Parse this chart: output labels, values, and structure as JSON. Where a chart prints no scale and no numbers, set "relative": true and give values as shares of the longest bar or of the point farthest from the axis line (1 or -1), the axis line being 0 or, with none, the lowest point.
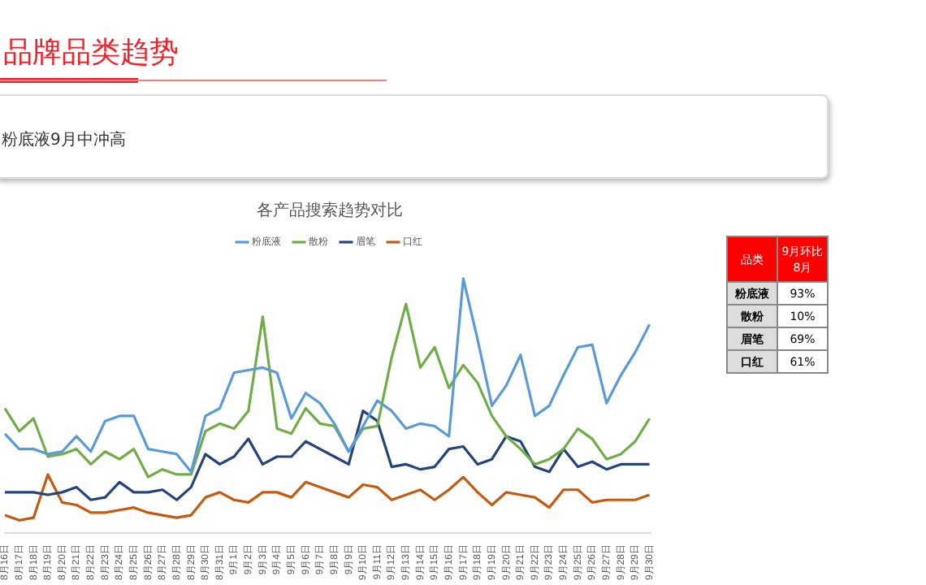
{
  "chart_data": [
    {
      "type": "line",
      "title": "各产品搜索趋势对比",
      "relative": true,
      "legend": "top",
      "grid": false,
      "marker": "none",
      "line_style": "solid",
      "annotations": [
        "品牌品类趋势",
        "粉底液9月中冲高"
      ],
      "categories": [
        "8月16日",
        "8月17日",
        "8月18日",
        "8月19日",
        "8月20日",
        "8月21日",
        "8月22日",
        "8月23日",
        "8月24日",
        "8月25日",
        "8月26日",
        "8月27日",
        "8月28日",
        "8月29日",
        "8月30日",
        "8月31日",
        "9月1日",
        "9月2日",
        "9月3日",
        "9月4日",
        "9月5日",
        "9月6日",
        "9月7日",
        "9月8日",
        "9月9日",
        "9月10日",
        "9月11日",
        "9月12日",
        "9月13日",
        "9月14日",
        "9月15日",
        "9月16日",
        "9月17日",
        "9月18日",
        "9月19日",
        "9月20日",
        "9月21日",
        "9月22日",
        "9月23日",
        "9月24日",
        "9月25日",
        "9月26日",
        "9月27日",
        "9月28日",
        "9月29日",
        "9月30日"
      ],
      "series": [
        {
          "name": "粉底液",
          "color": "#5b9bd5",
          "values": [
            0.39,
            0.33,
            0.33,
            0.31,
            0.32,
            0.38,
            0.32,
            0.44,
            0.46,
            0.46,
            0.33,
            0.32,
            0.31,
            0.24,
            0.46,
            0.49,
            0.63,
            0.64,
            0.65,
            0.63,
            0.45,
            0.55,
            0.51,
            0.43,
            0.32,
            0.42,
            0.52,
            0.48,
            0.41,
            0.43,
            0.42,
            0.38,
            1,
            0.76,
            0.5,
            0.58,
            0.7,
            0.46,
            0.5,
            0.62,
            0.73,
            0.74,
            0.51,
            0.62,
            0.71,
            0.82
          ]
        },
        {
          "name": "散粉",
          "color": "#70ad47",
          "values": [
            0.49,
            0.4,
            0.45,
            0.3,
            0.31,
            0.33,
            0.27,
            0.32,
            0.29,
            0.33,
            0.22,
            0.25,
            0.23,
            0.23,
            0.4,
            0.43,
            0.41,
            0.48,
            0.85,
            0.41,
            0.39,
            0.49,
            0.43,
            0.42,
            0.32,
            0.41,
            0.42,
            0.69,
            0.9,
            0.65,
            0.73,
            0.57,
            0.66,
            0.59,
            0.46,
            0.38,
            0.33,
            0.27,
            0.29,
            0.33,
            0.41,
            0.37,
            0.29,
            0.31,
            0.36,
            0.45
          ]
        },
        {
          "name": "眉笔",
          "color": "#264478",
          "values": [
            0.16,
            0.16,
            0.16,
            0.15,
            0.16,
            0.18,
            0.13,
            0.14,
            0.2,
            0.16,
            0.16,
            0.17,
            0.13,
            0.18,
            0.31,
            0.27,
            0.3,
            0.37,
            0.27,
            0.3,
            0.3,
            0.36,
            0.33,
            0.3,
            0.27,
            0.48,
            0.44,
            0.26,
            0.27,
            0.25,
            0.26,
            0.33,
            0.34,
            0.27,
            0.29,
            0.38,
            0.36,
            0.26,
            0.24,
            0.33,
            0.26,
            0.28,
            0.25,
            0.27,
            0.27,
            0.27
          ]
        },
        {
          "name": "口红",
          "color": "#c55a11",
          "values": [
            0.07,
            0.05,
            0.06,
            0.23,
            0.12,
            0.11,
            0.08,
            0.08,
            0.09,
            0.1,
            0.08,
            0.07,
            0.06,
            0.07,
            0.14,
            0.16,
            0.13,
            0.12,
            0.16,
            0.16,
            0.14,
            0.2,
            0.18,
            0.16,
            0.14,
            0.19,
            0.18,
            0.13,
            0.15,
            0.17,
            0.13,
            0.17,
            0.22,
            0.16,
            0.11,
            0.16,
            0.15,
            0.14,
            0.1,
            0.17,
            0.17,
            0.12,
            0.13,
            0.13,
            0.13,
            0.15
          ]
        }
      ]
    },
    {
      "type": "other",
      "annotations": [
        "品类",
        "9月环比8月"
      ],
      "categories": [
        "粉底液",
        "散粉",
        "眉笔",
        "口红"
      ],
      "value_labels": [
        "93%",
        "10%",
        "69%",
        "61%"
      ]
    }
  ]
}
